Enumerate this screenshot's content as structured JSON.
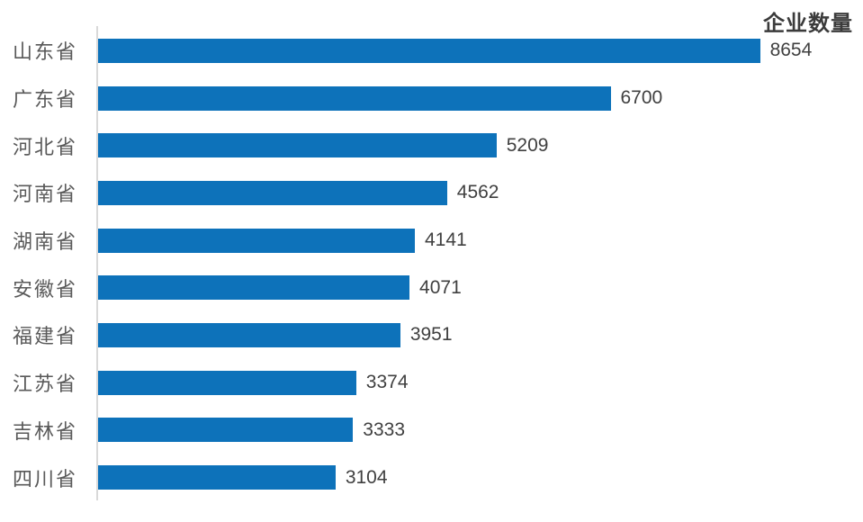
{
  "chart_data": {
    "type": "bar",
    "orientation": "horizontal",
    "title": "企业数量",
    "categories": [
      "山东省",
      "广东省",
      "河北省",
      "河南省",
      "湖南省",
      "安徽省",
      "福建省",
      "江苏省",
      "吉林省",
      "四川省"
    ],
    "values": [
      8654,
      6700,
      5209,
      4562,
      4141,
      4071,
      3951,
      3374,
      3333,
      3104
    ],
    "data_labels": [
      "8654",
      "6700",
      "5209",
      "4562",
      "4141",
      "4071",
      "3951",
      "3374",
      "3333",
      "3104"
    ],
    "xlabel": "",
    "ylabel": "",
    "xlim": [
      0,
      10000
    ],
    "grid": false,
    "legend": false,
    "value_labels_position": "outside-end",
    "sort_order": "descending"
  },
  "colors": {
    "bar": "#0d72ba",
    "axis_line": "#d9d9d9",
    "category_label": "#595959",
    "value_label": "#404040",
    "title": "#3b3b3b",
    "background": "#ffffff"
  }
}
